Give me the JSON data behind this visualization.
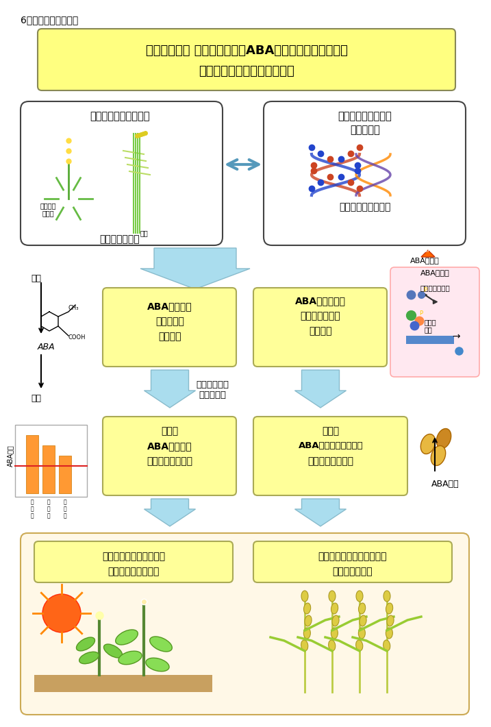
{
  "title_label": "6．研究のイメージ図",
  "main_title_line1": "植物ホルモン アブシジン酸（ABA）の制御機構の解明と",
  "main_title_line2": "バイオテクノロジーへの応用",
  "box1_title": "モデル実験植物の利用",
  "box1_subtitle": "遺伝学的な研究",
  "box1_label1": "シロイヌ\nナズナ",
  "box1_label2": "イネ",
  "box2_title_line1": "ゲノムの全塩基配列",
  "box2_title_line2": "情報の利用",
  "box2_subtitle": "ゲノム科学的な研究",
  "synth_label": "合成",
  "decomp_label": "分解",
  "aba_label": "ABA",
  "box3_line1": "ABAの合成・",
  "box3_line2": "分解機構を",
  "box3_line3": "解明する",
  "box4_line1": "ABAの受容から",
  "box4_line2": "遺伝子発現まで",
  "box4_line3": "解明する",
  "gene_tech_label": "遺伝子組換え\n技術を利用",
  "aba_reception_label": "ABAの受容",
  "signal_label": "シグナルの流れ",
  "gene_expr_label": "遺伝子\n発現",
  "box5_line1": "植物内",
  "box5_line2": "ABAレベルを",
  "box5_line3": "コントロールする",
  "box6_line1": "植物の",
  "box6_line2": "ABAに対する応答性を",
  "box6_line3": "コントロールする",
  "aba_treatment_label": "ABA処理",
  "box7_line1": "乾燥・塩・低温ストレス",
  "box7_line2": "耐性植物を開発する",
  "box8_line1": "高品質で安定した種子生産",
  "box8_line2": "技術を開発する",
  "ylabel_left": "ABAの量",
  "bar_labels": [
    "副\n社\n長",
    "副\n蔵\n頭",
    "副\n乙\n燥"
  ],
  "title_bg": "#FFFF80",
  "box_yellow_bg": "#FFFF99",
  "box_white_bg": "#FFFFFF",
  "arrow_blue": "#87CEEB",
  "box_outline": "#333333",
  "bottom_bg": "#FFF9E6"
}
